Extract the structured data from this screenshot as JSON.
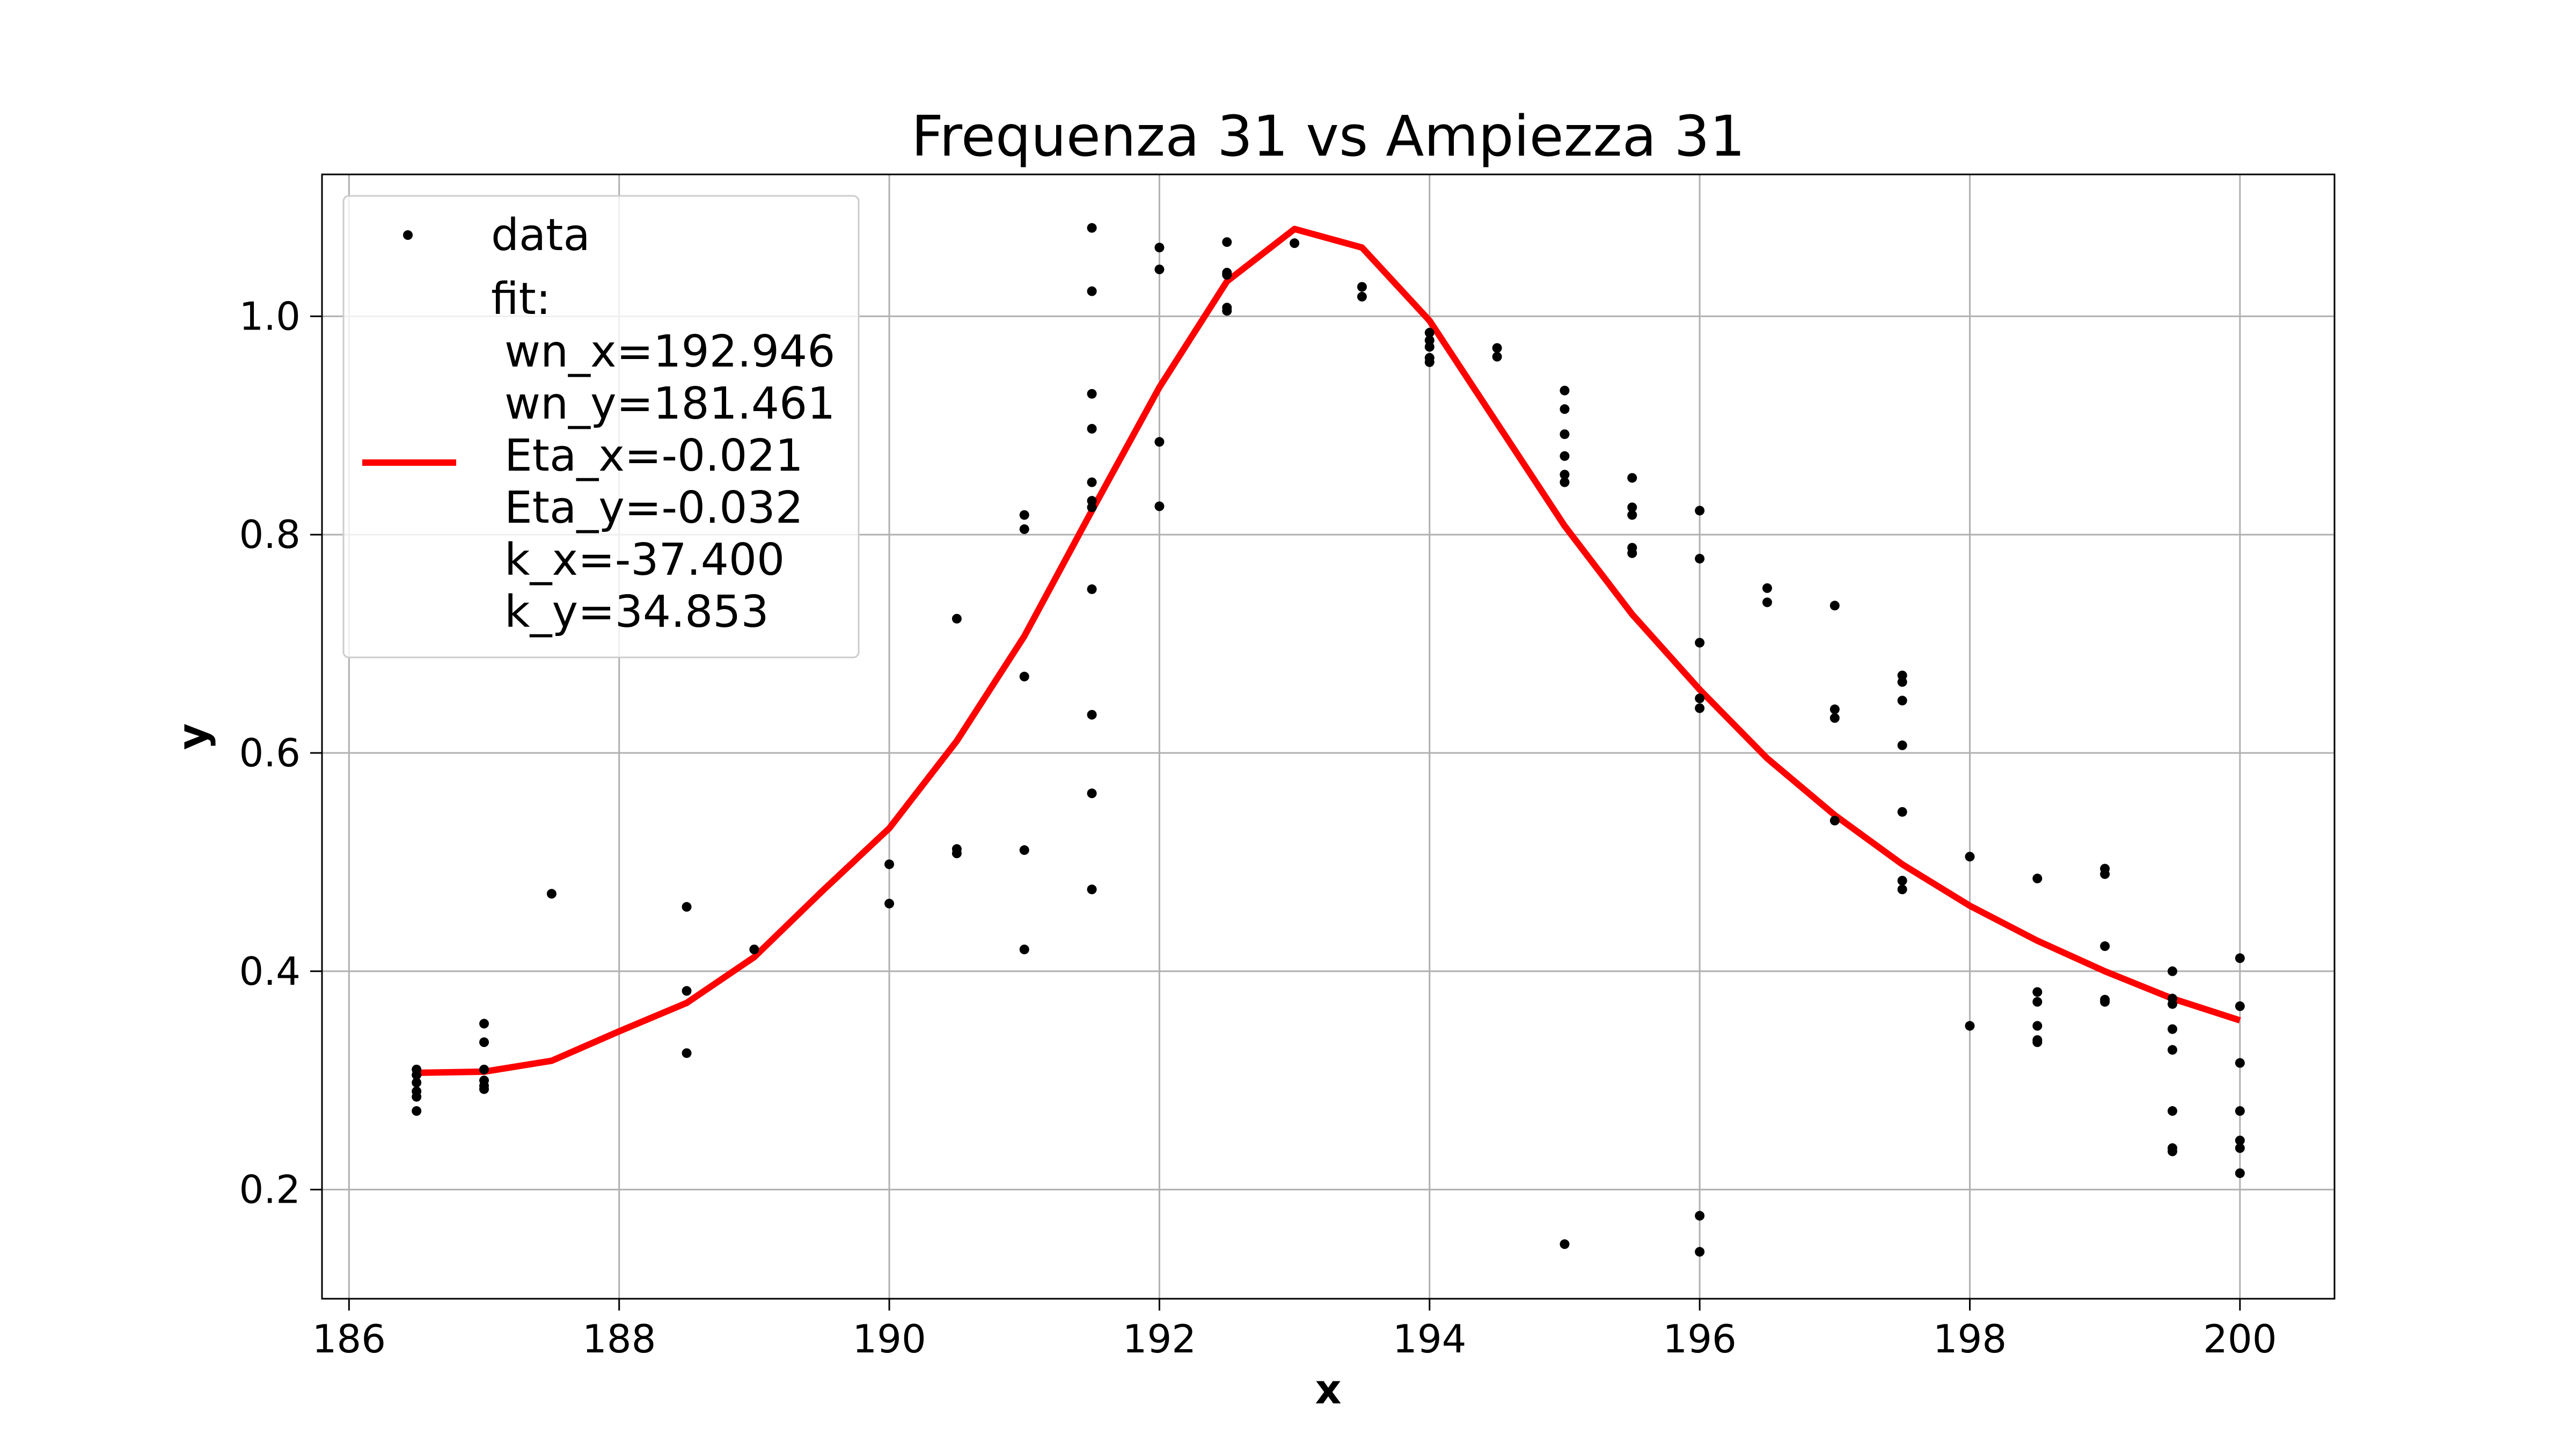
{
  "chart_data": {
    "type": "scatter",
    "title": "Frequenza 31 vs Ampiezza 31",
    "xlabel": "x",
    "ylabel": "y",
    "xlim": [
      185.8,
      200.7
    ],
    "ylim": [
      0.1,
      1.13
    ],
    "x_ticks": [
      186,
      188,
      190,
      192,
      194,
      196,
      198,
      200
    ],
    "x_tick_labels": [
      "186",
      "188",
      "190",
      "192",
      "194",
      "196",
      "198",
      "200"
    ],
    "y_ticks": [
      0.2,
      0.4,
      0.6,
      0.8,
      1.0
    ],
    "y_tick_labels": [
      "0.2",
      "0.4",
      "0.6",
      "0.8",
      "1.0"
    ],
    "grid": true,
    "legend_position": "top-left",
    "colors": {
      "data": "#000000",
      "fit": "#ff0000"
    },
    "series": [
      {
        "name": "data",
        "kind": "scatter",
        "x": [
          186.5,
          186.5,
          186.5,
          186.5,
          186.5,
          186.5,
          187,
          187,
          187,
          187,
          187,
          187,
          187.5,
          188.5,
          188.5,
          188.5,
          189,
          190,
          190,
          190.5,
          190.5,
          190.5,
          191,
          191,
          191,
          191,
          191,
          191.5,
          191.5,
          191.5,
          191.5,
          191.5,
          191.5,
          191.5,
          191.5,
          191.5,
          191.5,
          191.5,
          192,
          192,
          192,
          192,
          192.5,
          192.5,
          192.5,
          192.5,
          192.5,
          193,
          193.5,
          193.5,
          194,
          194,
          194,
          194,
          194,
          194.5,
          194.5,
          195,
          195,
          195,
          195,
          195,
          195,
          195,
          195.5,
          195.5,
          195.5,
          195.5,
          195.5,
          196,
          196,
          196,
          196,
          196,
          196,
          196,
          196.5,
          196.5,
          197,
          197,
          197,
          197,
          197.5,
          197.5,
          197.5,
          197.5,
          197.5,
          197.5,
          197.5,
          198,
          198,
          198.5,
          198.5,
          198.5,
          198.5,
          198.5,
          198.5,
          199,
          199,
          199,
          199,
          199,
          199.5,
          199.5,
          199.5,
          199.5,
          199.5,
          199.5,
          199.5,
          199.5,
          200,
          200,
          200,
          200,
          200,
          200,
          200
        ],
        "y": [
          0.31,
          0.305,
          0.298,
          0.29,
          0.285,
          0.272,
          0.352,
          0.335,
          0.31,
          0.3,
          0.295,
          0.292,
          0.471,
          0.459,
          0.382,
          0.325,
          0.42,
          0.498,
          0.462,
          0.723,
          0.512,
          0.508,
          0.818,
          0.805,
          0.67,
          0.511,
          0.42,
          1.081,
          1.023,
          0.929,
          0.897,
          0.848,
          0.831,
          0.825,
          0.75,
          0.635,
          0.563,
          0.475,
          1.063,
          1.043,
          0.885,
          0.826,
          1.068,
          1.04,
          1.038,
          1.008,
          1.005,
          1.067,
          1.027,
          1.018,
          0.985,
          0.978,
          0.972,
          0.962,
          0.958,
          0.971,
          0.963,
          0.932,
          0.915,
          0.892,
          0.872,
          0.855,
          0.848,
          0.15,
          0.852,
          0.825,
          0.818,
          0.788,
          0.783,
          0.822,
          0.778,
          0.701,
          0.641,
          0.65,
          0.176,
          0.143,
          0.751,
          0.738,
          0.735,
          0.64,
          0.632,
          0.538,
          0.671,
          0.665,
          0.648,
          0.607,
          0.546,
          0.483,
          0.475,
          0.505,
          0.35,
          0.485,
          0.381,
          0.372,
          0.35,
          0.337,
          0.335,
          0.494,
          0.489,
          0.423,
          0.374,
          0.372,
          0.4,
          0.375,
          0.37,
          0.347,
          0.328,
          0.272,
          0.238,
          0.235,
          0.412,
          0.368,
          0.316,
          0.272,
          0.245,
          0.238,
          0.215
        ]
      },
      {
        "name": "fit",
        "kind": "line",
        "x": [
          186.5,
          187,
          187.5,
          188,
          188.5,
          189,
          189.5,
          190,
          190.5,
          191,
          191.5,
          192,
          192.5,
          193,
          193.5,
          194,
          194.5,
          195,
          195.5,
          196,
          196.5,
          197,
          197.5,
          198,
          198.5,
          199,
          199.5,
          200
        ],
        "y": [
          0.307,
          0.308,
          0.318,
          0.345,
          0.371,
          0.413,
          0.473,
          0.531,
          0.611,
          0.707,
          0.822,
          0.935,
          1.032,
          1.08,
          1.063,
          0.996,
          0.902,
          0.808,
          0.727,
          0.658,
          0.595,
          0.543,
          0.498,
          0.46,
          0.428,
          0.4,
          0.375,
          0.355
        ]
      }
    ],
    "legend": {
      "entries": [
        {
          "label": "data",
          "marker": "dot"
        },
        {
          "label": "fit:",
          "marker": "line"
        }
      ],
      "fit_params": [
        "wn_x=192.946",
        "wn_y=181.461",
        "Eta_x=-0.021",
        "Eta_y=-0.032",
        "k_x=-37.400",
        "k_y=34.853"
      ]
    }
  }
}
